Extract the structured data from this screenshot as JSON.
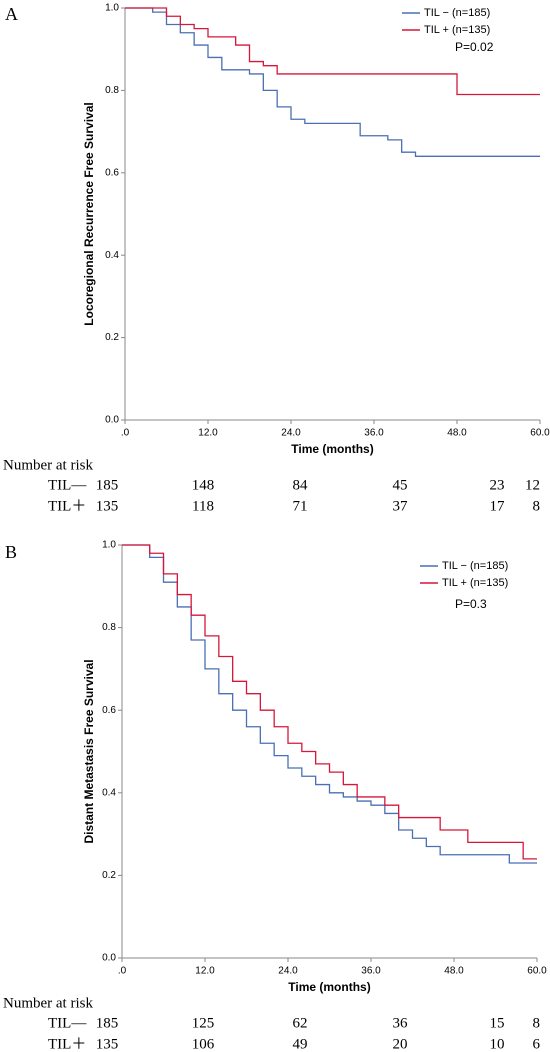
{
  "chart_data": [
    {
      "type": "line",
      "label": "A",
      "ylabel": "Locoregional Recurrence Free Survival",
      "xlabel": "Time (months)",
      "annotation": "P=0.02",
      "x": [
        0,
        2,
        4,
        6,
        8,
        10,
        12,
        14,
        16,
        18,
        20,
        22,
        24,
        26,
        28,
        30,
        32,
        34,
        36,
        38,
        40,
        42,
        44,
        46,
        48,
        50,
        52,
        54,
        56,
        58,
        60
      ],
      "series": [
        {
          "name": "TIL − (n=185)",
          "color": "#4a6fb5",
          "values": [
            1,
            1,
            0.99,
            0.96,
            0.94,
            0.91,
            0.88,
            0.85,
            0.85,
            0.84,
            0.8,
            0.76,
            0.73,
            0.72,
            0.72,
            0.72,
            0.72,
            0.69,
            0.69,
            0.68,
            0.65,
            0.64,
            0.64,
            0.64,
            0.64,
            0.64,
            0.64,
            0.64,
            0.64,
            0.64,
            0.64
          ]
        },
        {
          "name": "TIL + (n=135)",
          "color": "#d6173a",
          "values": [
            1,
            1,
            1,
            0.98,
            0.96,
            0.95,
            0.93,
            0.93,
            0.91,
            0.87,
            0.86,
            0.84,
            0.84,
            0.84,
            0.84,
            0.84,
            0.84,
            0.84,
            0.84,
            0.84,
            0.84,
            0.84,
            0.84,
            0.84,
            0.79,
            0.79,
            0.79,
            0.79,
            0.79,
            0.79,
            0.79
          ]
        }
      ],
      "xlim": [
        0,
        60
      ],
      "xticks": [
        {
          "value": 0,
          "label": ".0"
        },
        {
          "value": 12,
          "label": "12.0"
        },
        {
          "value": 24,
          "label": "24.0"
        },
        {
          "value": 36,
          "label": "36.0"
        },
        {
          "value": 48,
          "label": "48.0"
        },
        {
          "value": 60,
          "label": "60.0"
        }
      ],
      "ylim": [
        0,
        1
      ],
      "yticks": [
        {
          "value": 0,
          "label": "0.0"
        },
        {
          "value": 0.2,
          "label": "0.2"
        },
        {
          "value": 0.4,
          "label": "0.4"
        },
        {
          "value": 0.6,
          "label": "0.6"
        },
        {
          "value": 0.8,
          "label": "0.8"
        },
        {
          "value": 1,
          "label": "1.0"
        }
      ],
      "risk_table": {
        "title": "Number at risk",
        "rows": [
          {
            "name": "TIL—",
            "values": [
              185,
              148,
              84,
              45,
              23,
              12
            ]
          },
          {
            "name": "TIL＋",
            "values": [
              135,
              118,
              71,
              37,
              17,
              8
            ]
          }
        ]
      }
    },
    {
      "type": "line",
      "label": "B",
      "ylabel": "Distant Metastasis Free Survival",
      "xlabel": "Time (months)",
      "annotation": "P=0.3",
      "x": [
        0,
        2,
        4,
        6,
        8,
        10,
        12,
        14,
        16,
        18,
        20,
        22,
        24,
        26,
        28,
        30,
        32,
        34,
        36,
        38,
        40,
        42,
        44,
        46,
        48,
        50,
        52,
        54,
        56,
        58,
        60
      ],
      "series": [
        {
          "name": "TIL − (n=185)",
          "color": "#4a6fb5",
          "values": [
            1,
            1,
            0.97,
            0.91,
            0.85,
            0.77,
            0.7,
            0.64,
            0.6,
            0.56,
            0.52,
            0.49,
            0.46,
            0.44,
            0.42,
            0.4,
            0.39,
            0.38,
            0.37,
            0.35,
            0.31,
            0.29,
            0.27,
            0.25,
            0.25,
            0.25,
            0.25,
            0.25,
            0.23,
            0.23,
            0.23
          ]
        },
        {
          "name": "TIL + (n=135)",
          "color": "#d6173a",
          "values": [
            1,
            1,
            0.98,
            0.93,
            0.88,
            0.83,
            0.78,
            0.73,
            0.67,
            0.64,
            0.6,
            0.56,
            0.52,
            0.5,
            0.47,
            0.45,
            0.42,
            0.39,
            0.39,
            0.37,
            0.34,
            0.34,
            0.34,
            0.31,
            0.31,
            0.28,
            0.28,
            0.28,
            0.28,
            0.24,
            0.24
          ]
        }
      ],
      "xlim": [
        0,
        60
      ],
      "xticks": [
        {
          "value": 0,
          "label": ".0"
        },
        {
          "value": 12,
          "label": "12.0"
        },
        {
          "value": 24,
          "label": "24.0"
        },
        {
          "value": 36,
          "label": "36.0"
        },
        {
          "value": 48,
          "label": "48.0"
        },
        {
          "value": 60,
          "label": "60.0"
        }
      ],
      "ylim": [
        0,
        1
      ],
      "yticks": [
        {
          "value": 0,
          "label": "0.0"
        },
        {
          "value": 0.2,
          "label": "0.2"
        },
        {
          "value": 0.4,
          "label": "0.4"
        },
        {
          "value": 0.6,
          "label": "0.6"
        },
        {
          "value": 0.8,
          "label": "0.8"
        },
        {
          "value": 1,
          "label": "1.0"
        }
      ],
      "risk_table": {
        "title": "Number at risk",
        "rows": [
          {
            "name": "TIL—",
            "values": [
              185,
              125,
              62,
              36,
              15,
              8
            ]
          },
          {
            "name": "TIL＋",
            "values": [
              135,
              106,
              49,
              20,
              10,
              6
            ]
          }
        ]
      }
    }
  ]
}
